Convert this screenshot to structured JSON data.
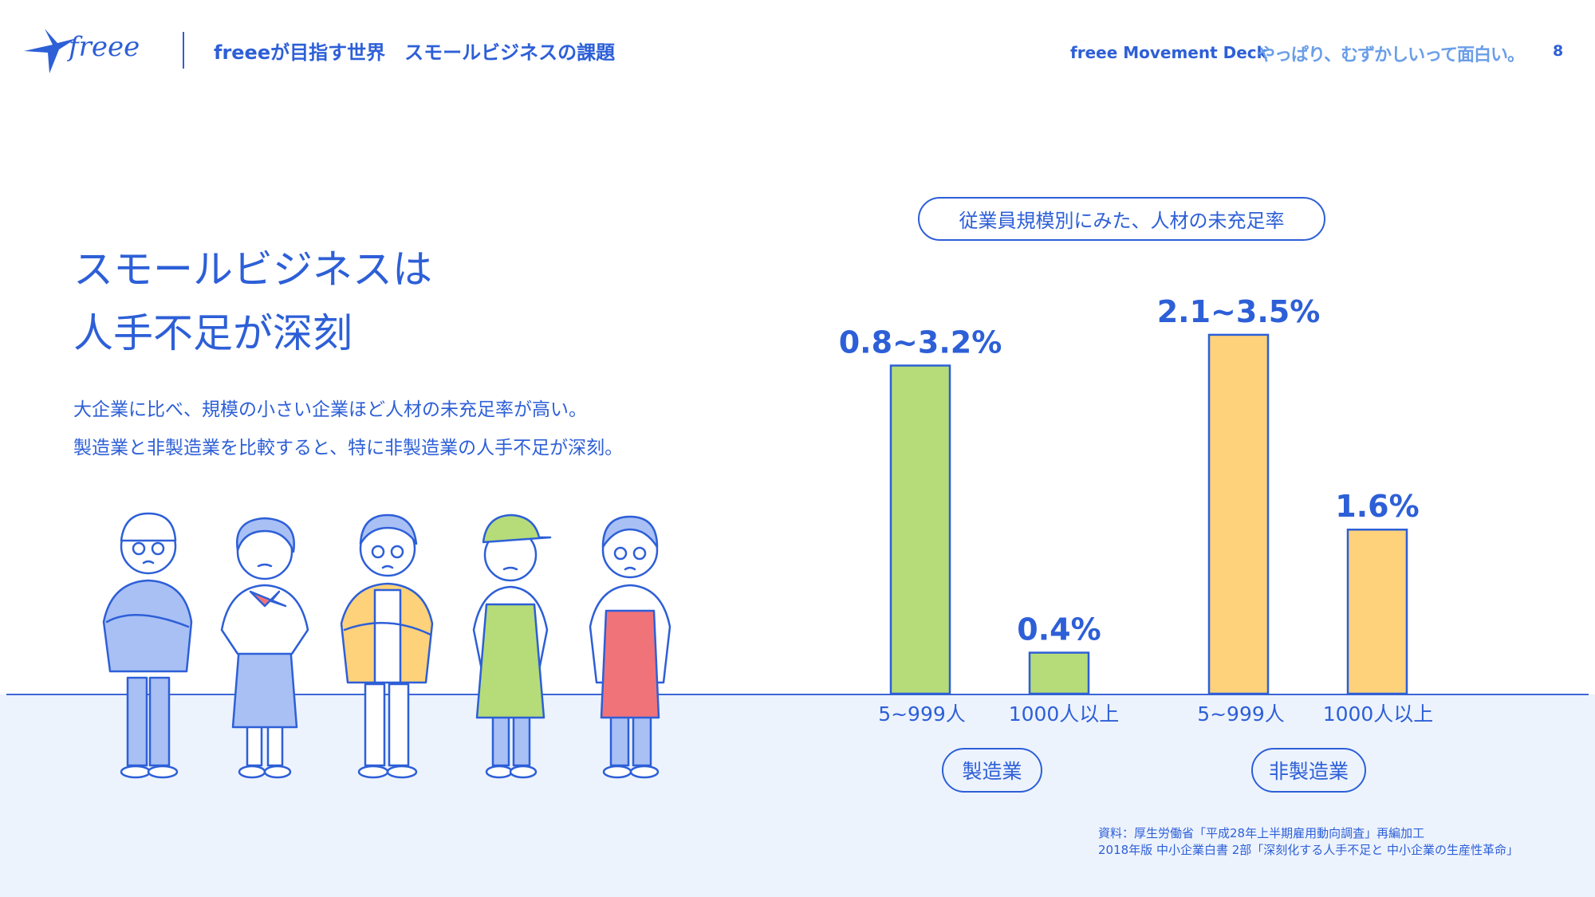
{
  "header": {
    "logo_text": "freee",
    "title": "freeeが目指す世界　スモールビジネスの課題",
    "deck_label": "freee Movement Deck",
    "tagline": "やっぱり、むずかしいって面白い。",
    "page_number": "8"
  },
  "main": {
    "headline_lines": [
      "スモールビジネスは",
      "人手不足が深刻"
    ],
    "body_lines": [
      "大企業に比べ、規模の小さい企業ほど人材の未充足率が高い。",
      "製造業と非製造業を比較すると、特に非製造業の人手不足が深刻。"
    ]
  },
  "chart_data": {
    "type": "bar",
    "title": "従業員規模別にみた、人材の未充足率",
    "groups": [
      {
        "name": "製造業",
        "color": "#b5dc78",
        "bars": [
          {
            "category": "5~999人",
            "value": 3.2,
            "range": [
              0.8,
              3.2
            ],
            "label": "0.8~3.2%"
          },
          {
            "category": "1000人以上",
            "value": 0.4,
            "label": "0.4%"
          }
        ]
      },
      {
        "name": "非製造業",
        "color": "#fdd27a",
        "bars": [
          {
            "category": "5~999人",
            "value": 3.5,
            "range": [
              2.1,
              3.5
            ],
            "label": "2.1~3.5%"
          },
          {
            "category": "1000人以上",
            "value": 1.6,
            "label": "1.6%"
          }
        ]
      }
    ],
    "unit": "%",
    "grid": false,
    "legend": "none"
  },
  "source": {
    "lines": [
      "資料：厚生労働省「平成28年上半期雇用動向調査」再編加工",
      "2018年版 中小企業白書 2部「深刻化する人手不足と 中小企業の生産性革命」"
    ]
  },
  "colors": {
    "brand_blue": "#2d5fd7",
    "bar_green": "#b5dc78",
    "bar_yellow": "#fdd27a",
    "ground": "#edf3fd"
  }
}
